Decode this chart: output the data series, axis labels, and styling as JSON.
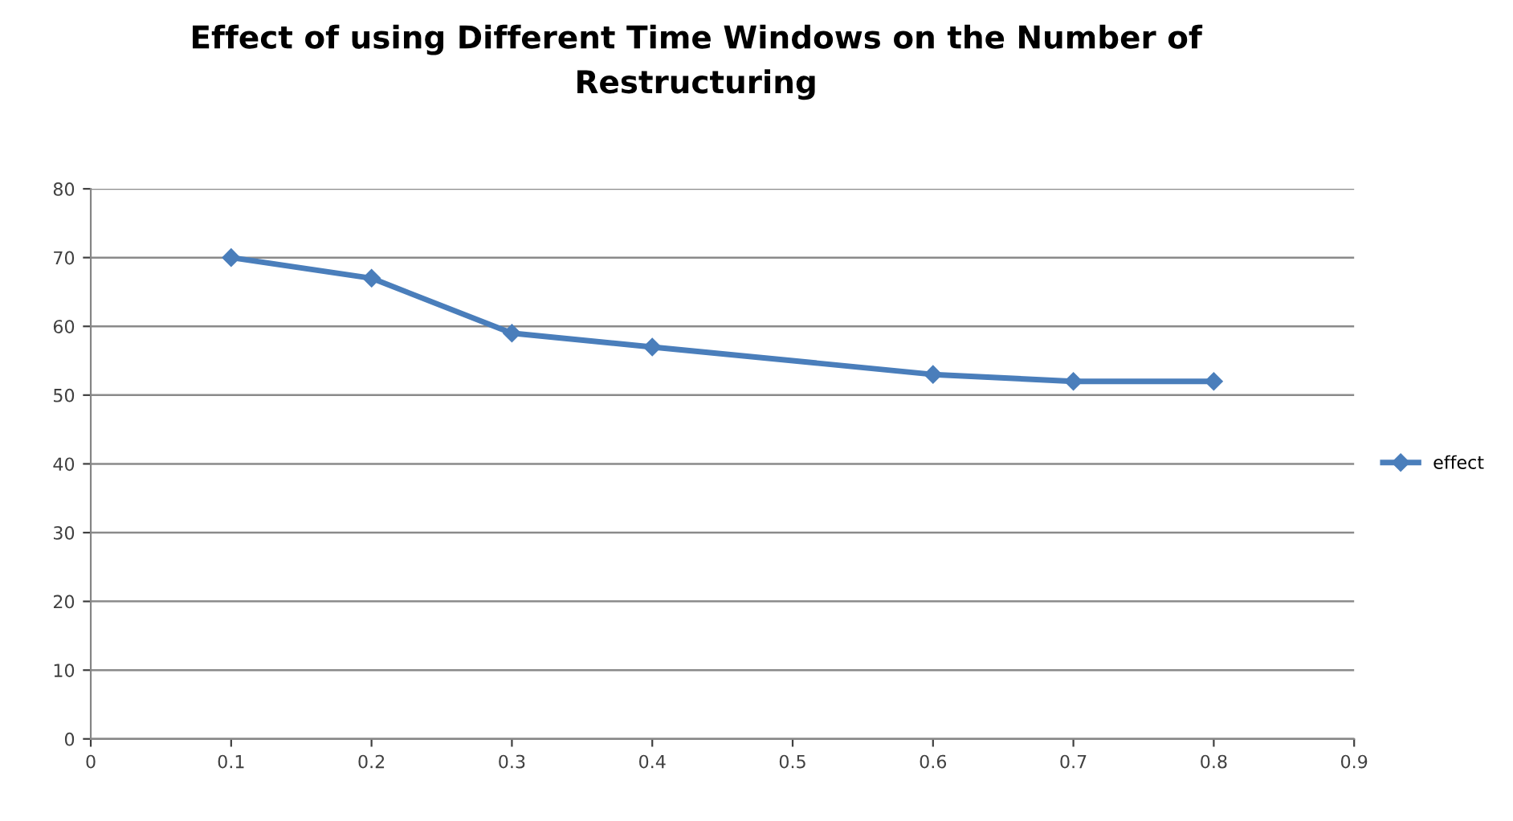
{
  "chart_data": {
    "type": "line",
    "title": "Effect of using Different Time Windows on the Number of\nRestructuring",
    "x": [
      0.1,
      0.2,
      0.3,
      0.4,
      0.6,
      0.7,
      0.8
    ],
    "series": [
      {
        "name": "effect",
        "color": "#4a7ebb",
        "values": [
          70,
          67,
          59,
          57,
          53,
          52,
          52
        ]
      }
    ],
    "xlim": [
      0,
      0.9
    ],
    "xticks": [
      0,
      0.1,
      0.2,
      0.3,
      0.4,
      0.5,
      0.6,
      0.7,
      0.8,
      0.9
    ],
    "ylim": [
      0,
      80
    ],
    "yticks": [
      0,
      10,
      20,
      30,
      40,
      50,
      60,
      70,
      80
    ],
    "grid": "y",
    "legend": "right",
    "marker": "diamond",
    "line_style": "solid"
  }
}
